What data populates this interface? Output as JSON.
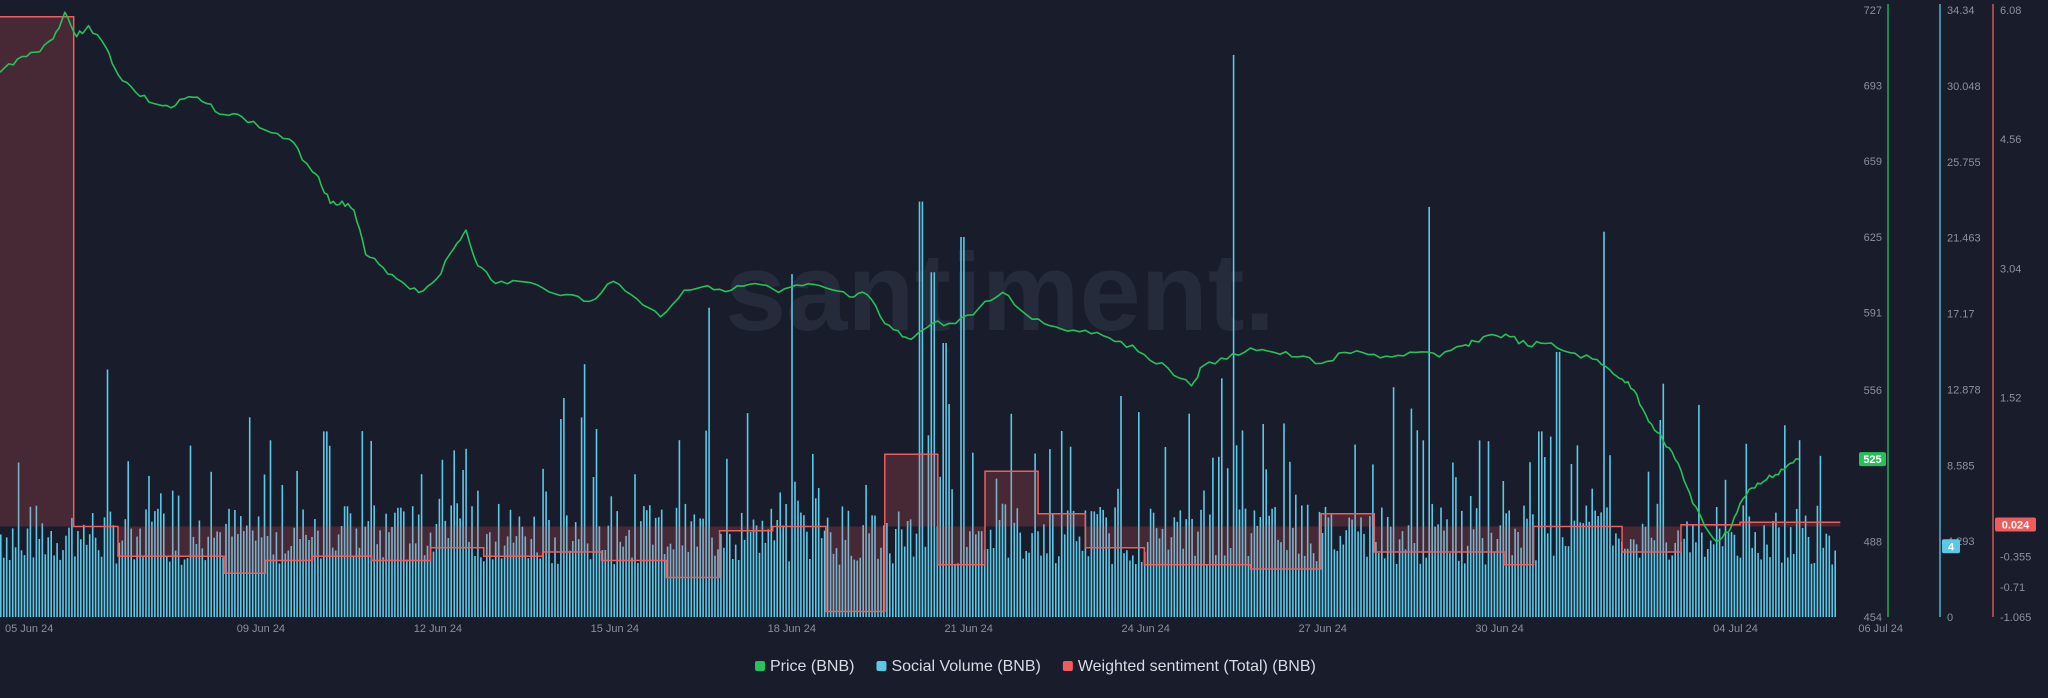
{
  "watermark": "santiment.",
  "chart_data": {
    "type": "line",
    "x_ticks": [
      "05 Jun 24",
      "09 Jun 24",
      "12 Jun 24",
      "15 Jun 24",
      "18 Jun 24",
      "21 Jun 24",
      "24 Jun 24",
      "27 Jun 24",
      "30 Jun 24",
      "04 Jul 24",
      "06 Jul 24"
    ],
    "x_range_days": [
      0,
      31.5
    ],
    "axes": {
      "price": {
        "ticks": [
          "727",
          "693",
          "659",
          "625",
          "591",
          "556",
          "488",
          "454"
        ],
        "range": [
          454,
          727
        ],
        "current": "525",
        "color": "#26c15a"
      },
      "social_volume": {
        "ticks": [
          "34.34",
          "30.048",
          "25.755",
          "21.463",
          "17.17",
          "12.878",
          "8.585",
          "4.293",
          "0"
        ],
        "range": [
          0,
          34.34
        ],
        "current": "4",
        "color": "#5bc8e6"
      },
      "sentiment": {
        "ticks": [
          "6.08",
          "4.56",
          "3.04",
          "1.52",
          "-0.355",
          "-0.71",
          "-1.065"
        ],
        "range": [
          -1.065,
          6.08
        ],
        "current": "0.024",
        "color": "#f05c5c"
      }
    },
    "series": [
      {
        "name": "Price (BNB)",
        "type": "line",
        "axis": "price",
        "color": "#26c15a",
        "points": [
          [
            0,
            699
          ],
          [
            0.3,
            705
          ],
          [
            0.6,
            708
          ],
          [
            0.9,
            714
          ],
          [
            1.1,
            726
          ],
          [
            1.3,
            715
          ],
          [
            1.5,
            720
          ],
          [
            1.8,
            710
          ],
          [
            2.0,
            698
          ],
          [
            2.3,
            690
          ],
          [
            2.6,
            685
          ],
          [
            2.9,
            683
          ],
          [
            3.2,
            688
          ],
          [
            3.5,
            685
          ],
          [
            3.8,
            680
          ],
          [
            4.1,
            679
          ],
          [
            4.5,
            673
          ],
          [
            4.9,
            669
          ],
          [
            5.2,
            658
          ],
          [
            5.4,
            652
          ],
          [
            5.6,
            640
          ],
          [
            5.8,
            641
          ],
          [
            6.0,
            637
          ],
          [
            6.2,
            617
          ],
          [
            6.5,
            611
          ],
          [
            6.8,
            605
          ],
          [
            7.1,
            600
          ],
          [
            7.4,
            606
          ],
          [
            7.7,
            620
          ],
          [
            7.9,
            628
          ],
          [
            8.1,
            612
          ],
          [
            8.4,
            604
          ],
          [
            8.8,
            605
          ],
          [
            9.2,
            602
          ],
          [
            9.6,
            599
          ],
          [
            10.0,
            596
          ],
          [
            10.4,
            605
          ],
          [
            10.8,
            597
          ],
          [
            11.2,
            589
          ],
          [
            11.6,
            601
          ],
          [
            12.0,
            603
          ],
          [
            12.4,
            601
          ],
          [
            12.8,
            604
          ],
          [
            13.2,
            600
          ],
          [
            13.6,
            603
          ],
          [
            14.0,
            602
          ],
          [
            14.4,
            598
          ],
          [
            14.7,
            599
          ],
          [
            15.0,
            586
          ],
          [
            15.3,
            580
          ],
          [
            15.5,
            580
          ],
          [
            15.8,
            586
          ],
          [
            16.2,
            586
          ],
          [
            16.6,
            593
          ],
          [
            17.0,
            600
          ],
          [
            17.4,
            590
          ],
          [
            17.8,
            585
          ],
          [
            18.2,
            583
          ],
          [
            18.6,
            582
          ],
          [
            19.0,
            578
          ],
          [
            19.4,
            572
          ],
          [
            19.8,
            566
          ],
          [
            20.2,
            558
          ],
          [
            20.4,
            567
          ],
          [
            20.8,
            570
          ],
          [
            21.2,
            575
          ],
          [
            21.6,
            573
          ],
          [
            22.0,
            571
          ],
          [
            22.4,
            568
          ],
          [
            22.8,
            573
          ],
          [
            23.2,
            572
          ],
          [
            23.6,
            571
          ],
          [
            24.0,
            573
          ],
          [
            24.4,
            571
          ],
          [
            24.8,
            576
          ],
          [
            25.0,
            578
          ],
          [
            25.3,
            581
          ],
          [
            25.6,
            580
          ],
          [
            25.9,
            576
          ],
          [
            26.2,
            577
          ],
          [
            26.6,
            573
          ],
          [
            27.0,
            570
          ],
          [
            27.3,
            565
          ],
          [
            27.5,
            561
          ],
          [
            27.7,
            556
          ],
          [
            27.9,
            545
          ],
          [
            28.1,
            537
          ],
          [
            28.3,
            530
          ],
          [
            28.5,
            520
          ],
          [
            28.7,
            505
          ],
          [
            28.9,
            495
          ],
          [
            29.1,
            488
          ],
          [
            29.3,
            492
          ],
          [
            29.5,
            505
          ],
          [
            29.7,
            512
          ],
          [
            29.9,
            515
          ],
          [
            30.1,
            518
          ],
          [
            30.3,
            522
          ],
          [
            30.5,
            525
          ]
        ]
      },
      {
        "name": "Social Volume (BNB)",
        "type": "bar",
        "axis": "social_volume",
        "color": "#5bc8e6",
        "baseline_level": 4,
        "peak_days": [
          [
            15.6,
            23.5
          ],
          [
            15.8,
            19.5
          ],
          [
            16.0,
            15.5
          ],
          [
            12.0,
            17.5
          ],
          [
            9.9,
            14.3
          ],
          [
            20.9,
            31.8
          ],
          [
            20.7,
            13.5
          ],
          [
            28.8,
            12.0
          ],
          [
            28.2,
            13.2
          ],
          [
            23.6,
            13.0
          ],
          [
            24.2,
            23.2
          ],
          [
            26.1,
            10.5
          ],
          [
            27.2,
            21.8
          ],
          [
            26.4,
            15.0
          ],
          [
            16.3,
            21.5
          ],
          [
            13.4,
            19.4
          ],
          [
            1.8,
            14.0
          ],
          [
            5.5,
            10.5
          ],
          [
            9.5,
            11.2
          ],
          [
            11.5,
            10.0
          ],
          [
            17.8,
            9.5
          ],
          [
            19.0,
            12.5
          ],
          [
            29.6,
            9.8
          ],
          [
            30.5,
            10.0
          ]
        ]
      },
      {
        "name": "Weighted sentiment (Total) (BNB)",
        "type": "step",
        "axis": "sentiment",
        "color": "#f05c5c",
        "steps": [
          [
            0,
            6.0
          ],
          [
            1.25,
            0.0
          ],
          [
            2.0,
            -0.35
          ],
          [
            3.2,
            -0.35
          ],
          [
            3.8,
            -0.55
          ],
          [
            4.5,
            -0.4
          ],
          [
            5.3,
            -0.35
          ],
          [
            6.3,
            -0.4
          ],
          [
            7.3,
            -0.25
          ],
          [
            8.2,
            -0.35
          ],
          [
            9.2,
            -0.3
          ],
          [
            10.2,
            -0.4
          ],
          [
            11.3,
            -0.6
          ],
          [
            12.2,
            -0.05
          ],
          [
            13.1,
            0.0
          ],
          [
            14.0,
            -1.0
          ],
          [
            15.0,
            0.85
          ],
          [
            15.9,
            -0.45
          ],
          [
            16.7,
            0.65
          ],
          [
            17.6,
            0.15
          ],
          [
            18.4,
            -0.25
          ],
          [
            19.4,
            -0.45
          ],
          [
            21.2,
            -0.5
          ],
          [
            22.4,
            0.15
          ],
          [
            23.3,
            -0.3
          ],
          [
            24.2,
            -0.3
          ],
          [
            25.5,
            -0.45
          ],
          [
            26.0,
            0.0
          ],
          [
            27.5,
            -0.3
          ],
          [
            28.5,
            0.02
          ],
          [
            29.0,
            0.02
          ],
          [
            29.5,
            0.05
          ],
          [
            30.8,
            0.05
          ]
        ]
      }
    ],
    "legend_position": "bottom-center"
  }
}
